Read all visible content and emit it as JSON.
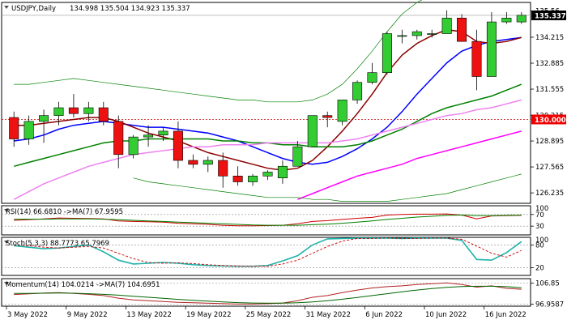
{
  "chart_data": [
    {
      "type": "candlestick",
      "panel": "main",
      "symbol_label": "USDJPY,Daily",
      "ohlc_label": "134.998 135.504 134.923 135.337",
      "ylim": [
        125.7,
        136.0
      ],
      "y_ticks": [
        "135.56",
        "134.215",
        "132.885",
        "131.555",
        "130.215",
        "128.895",
        "127.565",
        "126.235"
      ],
      "y_tick_values": [
        135.56,
        134.215,
        132.885,
        131.555,
        130.215,
        128.895,
        127.565,
        126.235
      ],
      "current_price": "135.337",
      "current_price_value": 135.337,
      "level_label": "130.000",
      "level_value": 130.0,
      "x_labels": [
        "3 May 2022",
        "9 May 2022",
        "13 May 2022",
        "19 May 2022",
        "25 May 2022",
        "31 May 2022",
        "6 Jun 2022",
        "10 Jun 2022",
        "16 Jun 2022"
      ],
      "x_label_index": [
        0,
        4,
        8,
        12,
        16,
        20,
        24,
        28,
        32
      ],
      "candles": [
        [
          130.1,
          130.4,
          128.6,
          129.0
        ],
        [
          129.0,
          130.2,
          128.7,
          129.9
        ],
        [
          129.9,
          130.5,
          128.8,
          130.2
        ],
        [
          130.2,
          130.9,
          129.7,
          130.6
        ],
        [
          130.6,
          131.3,
          130.1,
          130.3
        ],
        [
          130.3,
          130.9,
          129.9,
          130.6
        ],
        [
          130.6,
          130.9,
          129.7,
          129.9
        ],
        [
          129.9,
          130.2,
          127.5,
          128.2
        ],
        [
          128.2,
          129.2,
          128.0,
          129.1
        ],
        [
          129.1,
          129.7,
          128.6,
          129.2
        ],
        [
          129.2,
          129.6,
          128.9,
          129.4
        ],
        [
          129.4,
          129.9,
          127.5,
          127.9
        ],
        [
          127.9,
          128.2,
          127.5,
          127.7
        ],
        [
          127.7,
          128.1,
          127.3,
          127.9
        ],
        [
          127.9,
          128.3,
          126.5,
          127.1
        ],
        [
          127.1,
          127.6,
          126.6,
          126.8
        ],
        [
          126.8,
          127.2,
          126.6,
          127.1
        ],
        [
          127.1,
          127.4,
          126.9,
          127.3
        ],
        [
          127.0,
          127.9,
          126.7,
          127.6
        ],
        [
          127.6,
          128.9,
          127.6,
          128.6
        ],
        [
          128.6,
          130.2,
          128.6,
          130.2
        ],
        [
          130.2,
          130.4,
          129.6,
          130.1
        ],
        [
          129.9,
          131.0,
          129.7,
          131.0
        ],
        [
          131.0,
          132.0,
          130.8,
          131.9
        ],
        [
          131.9,
          132.9,
          131.8,
          132.4
        ],
        [
          132.4,
          134.5,
          132.3,
          134.4
        ],
        [
          134.3,
          134.6,
          133.9,
          134.3
        ],
        [
          134.3,
          134.6,
          134.1,
          134.5
        ],
        [
          134.4,
          134.6,
          134.2,
          134.4
        ],
        [
          134.4,
          135.6,
          134.4,
          135.2
        ],
        [
          135.2,
          135.4,
          134.0,
          134.0
        ],
        [
          134.0,
          134.6,
          131.5,
          132.2
        ],
        [
          132.2,
          135.5,
          132.2,
          135.0
        ],
        [
          135.0,
          135.5,
          134.9,
          135.2
        ],
        [
          135.0,
          135.5,
          134.9,
          135.34
        ]
      ],
      "overlays": [
        {
          "color": "#0000ff",
          "values": [
            128.9,
            129.0,
            129.2,
            129.5,
            129.7,
            129.8,
            129.9,
            129.8,
            129.7,
            129.6,
            129.6,
            129.5,
            129.4,
            129.3,
            129.1,
            128.9,
            128.6,
            128.3,
            128.0,
            127.8,
            127.7,
            127.8,
            128.1,
            128.5,
            129.0,
            129.6,
            130.4,
            131.3,
            132.1,
            132.9,
            133.5,
            133.8,
            134.0,
            134.1,
            134.2
          ]
        },
        {
          "color": "#8b0000",
          "values": [
            129.7,
            129.7,
            129.8,
            129.9,
            130.0,
            130.1,
            130.1,
            129.9,
            129.6,
            129.3,
            129.1,
            128.9,
            128.6,
            128.3,
            128.1,
            127.9,
            127.7,
            127.5,
            127.4,
            127.5,
            127.9,
            128.6,
            129.4,
            130.3,
            131.3,
            132.4,
            133.3,
            133.9,
            134.3,
            134.6,
            134.5,
            134.0,
            133.9,
            134.0,
            134.2
          ]
        },
        {
          "color": "#008000",
          "values": [
            127.6,
            127.8,
            128.0,
            128.2,
            128.4,
            128.6,
            128.8,
            128.9,
            128.9,
            129.0,
            129.0,
            129.0,
            129.0,
            129.0,
            128.9,
            128.9,
            128.8,
            128.8,
            128.7,
            128.7,
            128.6,
            128.6,
            128.6,
            128.7,
            128.9,
            129.2,
            129.5,
            129.9,
            130.3,
            130.6,
            130.8,
            131.0,
            131.2,
            131.5,
            131.8
          ]
        },
        {
          "color": "#ee82ee",
          "values": [
            125.9,
            126.3,
            126.7,
            127.0,
            127.3,
            127.6,
            127.8,
            128.0,
            128.2,
            128.3,
            128.4,
            128.5,
            128.6,
            128.6,
            128.7,
            128.7,
            128.7,
            128.8,
            128.8,
            128.8,
            128.8,
            128.8,
            128.9,
            129.0,
            129.2,
            129.4,
            129.6,
            129.8,
            130.0,
            130.2,
            130.3,
            130.5,
            130.6,
            130.8,
            131.0
          ]
        },
        {
          "color": "#ff00ff",
          "values": [
            null,
            null,
            null,
            null,
            null,
            null,
            null,
            null,
            null,
            null,
            null,
            null,
            null,
            null,
            null,
            null,
            null,
            null,
            null,
            125.9,
            126.2,
            126.5,
            126.8,
            127.1,
            127.3,
            127.5,
            127.7,
            128.0,
            128.2,
            128.4,
            128.6,
            128.8,
            129.0,
            129.2,
            129.4
          ]
        },
        {
          "color": "#008000",
          "width": 0.7,
          "values": [
            131.8,
            131.8,
            131.9,
            132.0,
            132.1,
            132.0,
            131.9,
            131.8,
            131.7,
            131.6,
            131.5,
            131.4,
            131.3,
            131.2,
            131.1,
            131.0,
            131.0,
            130.9,
            130.9,
            130.9,
            131.0,
            131.3,
            131.8,
            132.6,
            133.5,
            134.5,
            135.4,
            136.0,
            136.4,
            136.6,
            136.6,
            136.4,
            136.3,
            136.3,
            136.3
          ]
        },
        {
          "color": "#008000",
          "width": 0.7,
          "values": [
            null,
            null,
            null,
            null,
            null,
            null,
            null,
            null,
            127.0,
            126.8,
            126.7,
            126.6,
            126.5,
            126.4,
            126.3,
            126.2,
            126.1,
            126.0,
            126.0,
            126.0,
            125.9,
            125.9,
            125.8,
            125.8,
            125.8,
            125.8,
            125.9,
            126.0,
            126.1,
            126.2,
            126.4,
            126.6,
            126.8,
            127.0,
            127.2
          ]
        }
      ]
    },
    {
      "type": "line",
      "panel": "rsi",
      "label": "RSI(14) 66.6810 ->MA(7) 67.9595",
      "ylim": [
        0,
        100
      ],
      "y_ticks": [
        "70",
        "30"
      ],
      "y_tick_values": [
        70,
        30
      ],
      "y_top_label": "100",
      "y_top_value": 100,
      "series": [
        {
          "color": "#cc0000",
          "values": [
            50,
            52,
            55,
            58,
            57,
            56,
            55,
            48,
            46,
            45,
            44,
            40,
            38,
            36,
            33,
            31,
            31,
            32,
            33,
            38,
            46,
            49,
            53,
            57,
            60,
            68,
            70,
            71,
            71,
            72,
            68,
            55,
            65,
            66,
            67
          ]
        },
        {
          "color": "#008000",
          "values": [
            54,
            54,
            54,
            55,
            55,
            55,
            54,
            52,
            50,
            48,
            46,
            44,
            42,
            40,
            38,
            36,
            34,
            33,
            33,
            33,
            35,
            37,
            40,
            44,
            48,
            53,
            57,
            61,
            64,
            67,
            68,
            66,
            66,
            67,
            68
          ]
        }
      ]
    },
    {
      "type": "line",
      "panel": "stoch",
      "label": "Stoch(5,3,3) 88.7773 65.7969",
      "ylim": [
        0,
        100
      ],
      "y_ticks": [
        "80",
        "20"
      ],
      "y_tick_values": [
        80,
        20
      ],
      "y_top_label": "100",
      "y_top_value": 100,
      "series": [
        {
          "color": "#20b2aa",
          "width": 1.6,
          "values": [
            78,
            74,
            70,
            72,
            76,
            80,
            62,
            40,
            30,
            32,
            34,
            32,
            28,
            26,
            25,
            24,
            24,
            26,
            38,
            52,
            80,
            96,
            97,
            98,
            98,
            98,
            97,
            98,
            98,
            98,
            92,
            42,
            40,
            60,
            88.8
          ]
        },
        {
          "color": "#cc0000",
          "width": 0.9,
          "dash": "3,2",
          "values": [
            80,
            78,
            74,
            72,
            74,
            76,
            72,
            58,
            44,
            34,
            32,
            33,
            31,
            28,
            26,
            25,
            24,
            24,
            30,
            40,
            58,
            76,
            90,
            97,
            97,
            98,
            97,
            97,
            98,
            98,
            95,
            77,
            58,
            48,
            65.8
          ]
        }
      ]
    },
    {
      "type": "line",
      "panel": "momentum",
      "label": "Momentum(14) 104.0214 ->MA(7) 104.6951",
      "ylim": [
        96.0,
        109.0
      ],
      "y_ticks": [
        "106.85",
        "96.9587"
      ],
      "y_tick_values": [
        106.85,
        96.9587
      ],
      "series": [
        {
          "color": "#b22222",
          "values": [
            101.5,
            101.8,
            102.2,
            102.4,
            102.0,
            101.6,
            101.0,
            99.8,
            99.0,
            98.6,
            98.2,
            97.8,
            97.6,
            97.4,
            97.2,
            97.0,
            97.0,
            97.2,
            97.5,
            98.6,
            100.2,
            101.0,
            102.4,
            103.6,
            104.6,
            105.2,
            105.6,
            106.2,
            106.6,
            107.0,
            106.2,
            105.0,
            105.6,
            104.4,
            104.0
          ]
        },
        {
          "color": "#006400",
          "values": [
            102.0,
            102.0,
            102.1,
            102.2,
            102.1,
            101.9,
            101.6,
            101.2,
            100.7,
            100.2,
            99.7,
            99.2,
            98.8,
            98.4,
            98.0,
            97.7,
            97.5,
            97.4,
            97.4,
            97.6,
            98.0,
            98.6,
            99.3,
            100.1,
            101.0,
            101.9,
            102.8,
            103.6,
            104.3,
            104.9,
            105.3,
            105.4,
            105.4,
            105.2,
            104.7
          ]
        }
      ]
    }
  ]
}
